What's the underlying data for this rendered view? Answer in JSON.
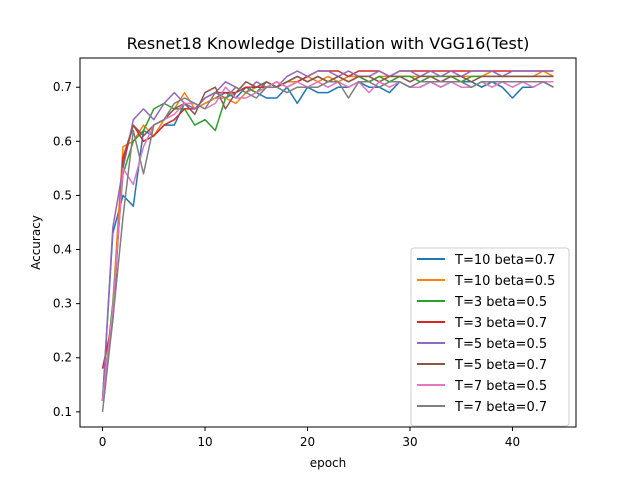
{
  "chart_data": {
    "type": "line",
    "title": "Resnet18 Knowledge Distillation with VGG16(Test)",
    "xlabel": "epoch",
    "ylabel": "Accuracy",
    "xlim": [
      -2.2,
      46.2
    ],
    "ylim": [
      0.072,
      0.754
    ],
    "xticks": [
      0,
      10,
      20,
      30,
      40
    ],
    "yticks": [
      0.1,
      0.2,
      0.3,
      0.4,
      0.5,
      0.6,
      0.7
    ],
    "grid": false,
    "legend_position": "lower-right",
    "x": [
      0,
      1,
      2,
      3,
      4,
      5,
      6,
      7,
      8,
      9,
      10,
      11,
      12,
      13,
      14,
      15,
      16,
      17,
      18,
      19,
      20,
      21,
      22,
      23,
      24,
      25,
      26,
      27,
      28,
      29,
      30,
      31,
      32,
      33,
      34,
      35,
      36,
      37,
      38,
      39,
      40,
      41,
      42,
      43,
      44
    ],
    "series": [
      {
        "name": "T=10 beta=0.7",
        "color": "#1f77b4",
        "values": [
          0.12,
          0.43,
          0.5,
          0.48,
          0.62,
          0.61,
          0.63,
          0.63,
          0.67,
          0.66,
          0.67,
          0.68,
          0.69,
          0.68,
          0.7,
          0.69,
          0.68,
          0.68,
          0.7,
          0.67,
          0.7,
          0.69,
          0.69,
          0.7,
          0.7,
          0.71,
          0.7,
          0.7,
          0.69,
          0.71,
          0.7,
          0.7,
          0.71,
          0.7,
          0.71,
          0.71,
          0.71,
          0.7,
          0.71,
          0.7,
          0.68,
          0.7,
          0.7,
          0.71,
          0.7
        ]
      },
      {
        "name": "T=10 beta=0.5",
        "color": "#ff7f0e",
        "values": [
          0.12,
          0.3,
          0.59,
          0.6,
          0.63,
          0.61,
          0.64,
          0.66,
          0.69,
          0.66,
          0.67,
          0.68,
          0.68,
          0.67,
          0.69,
          0.7,
          0.7,
          0.7,
          0.71,
          0.71,
          0.72,
          0.71,
          0.72,
          0.71,
          0.72,
          0.72,
          0.71,
          0.72,
          0.72,
          0.72,
          0.72,
          0.72,
          0.72,
          0.72,
          0.72,
          0.72,
          0.72,
          0.72,
          0.73,
          0.72,
          0.72,
          0.72,
          0.72,
          0.73,
          0.72
        ]
      },
      {
        "name": "T=3 beta=0.5",
        "color": "#2ca02c",
        "values": [
          0.12,
          0.3,
          0.54,
          0.6,
          0.62,
          0.66,
          0.67,
          0.66,
          0.66,
          0.63,
          0.64,
          0.62,
          0.68,
          0.69,
          0.7,
          0.69,
          0.71,
          0.7,
          0.71,
          0.72,
          0.71,
          0.72,
          0.71,
          0.72,
          0.71,
          0.72,
          0.71,
          0.72,
          0.71,
          0.72,
          0.72,
          0.71,
          0.72,
          0.72,
          0.72,
          0.71,
          0.72,
          0.72,
          0.72,
          0.72,
          0.72,
          0.72,
          0.72,
          0.72,
          0.72
        ]
      },
      {
        "name": "T=3 beta=0.7",
        "color": "#d62728",
        "values": [
          0.18,
          0.27,
          0.57,
          0.63,
          0.6,
          0.61,
          0.63,
          0.64,
          0.66,
          0.66,
          0.68,
          0.69,
          0.69,
          0.69,
          0.7,
          0.7,
          0.7,
          0.71,
          0.7,
          0.71,
          0.72,
          0.73,
          0.73,
          0.73,
          0.72,
          0.73,
          0.73,
          0.73,
          0.72,
          0.73,
          0.73,
          0.73,
          0.73,
          0.73,
          0.73,
          0.73,
          0.73,
          0.73,
          0.73,
          0.73,
          0.73,
          0.73,
          0.73,
          0.73,
          0.73
        ]
      },
      {
        "name": "T=5 beta=0.5",
        "color": "#9467bd",
        "values": [
          0.12,
          0.44,
          0.55,
          0.64,
          0.66,
          0.64,
          0.67,
          0.69,
          0.67,
          0.66,
          0.68,
          0.69,
          0.71,
          0.7,
          0.69,
          0.71,
          0.7,
          0.7,
          0.72,
          0.73,
          0.72,
          0.73,
          0.73,
          0.72,
          0.73,
          0.72,
          0.72,
          0.73,
          0.72,
          0.73,
          0.73,
          0.72,
          0.73,
          0.72,
          0.73,
          0.72,
          0.73,
          0.73,
          0.73,
          0.72,
          0.73,
          0.73,
          0.73,
          0.73,
          0.73
        ]
      },
      {
        "name": "T=5 beta=0.7",
        "color": "#8c564b",
        "values": [
          0.12,
          0.27,
          0.56,
          0.63,
          0.61,
          0.63,
          0.64,
          0.66,
          0.67,
          0.65,
          0.69,
          0.7,
          0.66,
          0.69,
          0.71,
          0.7,
          0.71,
          0.7,
          0.71,
          0.72,
          0.71,
          0.72,
          0.71,
          0.72,
          0.71,
          0.72,
          0.72,
          0.71,
          0.72,
          0.72,
          0.71,
          0.72,
          0.72,
          0.71,
          0.72,
          0.72,
          0.71,
          0.72,
          0.72,
          0.72,
          0.72,
          0.72,
          0.72,
          0.72,
          0.72
        ]
      },
      {
        "name": "T=7 beta=0.5",
        "color": "#e377c2",
        "values": [
          0.12,
          0.29,
          0.55,
          0.52,
          0.59,
          0.63,
          0.64,
          0.65,
          0.67,
          0.67,
          0.66,
          0.67,
          0.7,
          0.68,
          0.68,
          0.69,
          0.7,
          0.71,
          0.7,
          0.71,
          0.7,
          0.71,
          0.7,
          0.71,
          0.7,
          0.71,
          0.69,
          0.71,
          0.7,
          0.71,
          0.7,
          0.7,
          0.71,
          0.7,
          0.71,
          0.7,
          0.7,
          0.71,
          0.7,
          0.71,
          0.7,
          0.71,
          0.7,
          0.71,
          0.71
        ]
      },
      {
        "name": "T=7 beta=0.7",
        "color": "#7f7f7f",
        "values": [
          0.1,
          0.27,
          0.46,
          0.62,
          0.54,
          0.63,
          0.64,
          0.67,
          0.68,
          0.67,
          0.66,
          0.69,
          0.68,
          0.7,
          0.69,
          0.68,
          0.7,
          0.7,
          0.69,
          0.7,
          0.7,
          0.7,
          0.71,
          0.71,
          0.68,
          0.71,
          0.71,
          0.7,
          0.71,
          0.71,
          0.7,
          0.71,
          0.71,
          0.71,
          0.71,
          0.71,
          0.7,
          0.71,
          0.71,
          0.71,
          0.71,
          0.71,
          0.71,
          0.71,
          0.7
        ]
      }
    ]
  }
}
